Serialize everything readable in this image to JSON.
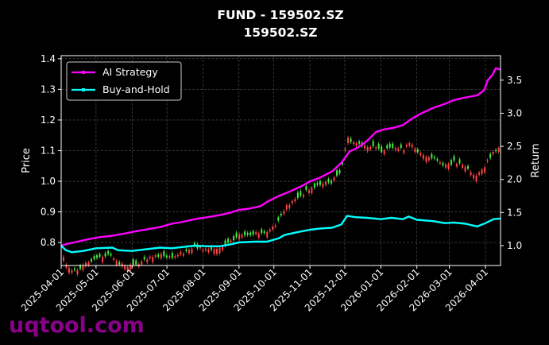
{
  "chart_data": {
    "type": "line",
    "title": "FUND - 159502.SZ",
    "subtitle": "159502.SZ",
    "ylabel_left": "Price",
    "ylabel_right": "Return",
    "watermark": "uqtool.com",
    "x_ticks": [
      "2025-04-01",
      "2025-05-01",
      "2025-06-01",
      "2025-07-01",
      "2025-08-01",
      "2025-09-01",
      "2025-10-01",
      "2025-11-01",
      "2025-12-01",
      "2026-01-01",
      "2026-02-01",
      "2026-03-01",
      "2026-04-01"
    ],
    "xlim": [
      "2025-04-01",
      "2026-04-14"
    ],
    "y_left_ticks": [
      "0.8",
      "0.9",
      "1.0",
      "1.1",
      "1.2",
      "1.3",
      "1.4"
    ],
    "y_left_range": [
      0.725,
      1.41
    ],
    "y_right_ticks": [
      "1.0",
      "1.5",
      "2.0",
      "2.5",
      "3.0",
      "3.5"
    ],
    "y_right_range": [
      0.7,
      3.87
    ],
    "grid": true,
    "legend_position": "top-left",
    "series": [
      {
        "name": "AI Strategy",
        "axis": "right",
        "color": "#ff00ff",
        "points": [
          [
            "2025-04-01",
            1.0
          ],
          [
            "2025-04-07",
            1.03
          ],
          [
            "2025-04-15",
            1.06
          ],
          [
            "2025-04-25",
            1.1
          ],
          [
            "2025-05-05",
            1.13
          ],
          [
            "2025-05-15",
            1.15
          ],
          [
            "2025-05-25",
            1.18
          ],
          [
            "2025-06-05",
            1.22
          ],
          [
            "2025-06-15",
            1.25
          ],
          [
            "2025-06-25",
            1.28
          ],
          [
            "2025-07-05",
            1.33
          ],
          [
            "2025-07-15",
            1.36
          ],
          [
            "2025-07-25",
            1.4
          ],
          [
            "2025-08-05",
            1.43
          ],
          [
            "2025-08-15",
            1.46
          ],
          [
            "2025-08-25",
            1.5
          ],
          [
            "2025-09-01",
            1.54
          ],
          [
            "2025-09-10",
            1.56
          ],
          [
            "2025-09-20",
            1.6
          ],
          [
            "2025-09-25",
            1.66
          ],
          [
            "2025-10-05",
            1.75
          ],
          [
            "2025-10-15",
            1.82
          ],
          [
            "2025-10-25",
            1.9
          ],
          [
            "2025-11-01",
            1.97
          ],
          [
            "2025-11-10",
            2.03
          ],
          [
            "2025-11-20",
            2.12
          ],
          [
            "2025-11-28",
            2.25
          ],
          [
            "2025-12-05",
            2.42
          ],
          [
            "2025-12-12",
            2.48
          ],
          [
            "2025-12-20",
            2.58
          ],
          [
            "2025-12-28",
            2.72
          ],
          [
            "2026-01-05",
            2.76
          ],
          [
            "2026-01-12",
            2.78
          ],
          [
            "2026-01-20",
            2.82
          ],
          [
            "2026-01-28",
            2.92
          ],
          [
            "2026-02-05",
            3.0
          ],
          [
            "2026-02-15",
            3.08
          ],
          [
            "2026-02-25",
            3.14
          ],
          [
            "2026-03-05",
            3.2
          ],
          [
            "2026-03-15",
            3.24
          ],
          [
            "2026-03-25",
            3.27
          ],
          [
            "2026-03-31",
            3.35
          ],
          [
            "2026-04-03",
            3.5
          ],
          [
            "2026-04-07",
            3.58
          ],
          [
            "2026-04-10",
            3.68
          ],
          [
            "2026-04-14",
            3.66
          ]
        ]
      },
      {
        "name": "Buy-and-Hold",
        "axis": "right",
        "color": "#00ffff",
        "points": [
          [
            "2025-04-01",
            1.0
          ],
          [
            "2025-04-05",
            0.93
          ],
          [
            "2025-04-10",
            0.9
          ],
          [
            "2025-04-20",
            0.92
          ],
          [
            "2025-05-01",
            0.96
          ],
          [
            "2025-05-15",
            0.97
          ],
          [
            "2025-05-20",
            0.93
          ],
          [
            "2025-06-01",
            0.92
          ],
          [
            "2025-06-15",
            0.95
          ],
          [
            "2025-06-25",
            0.97
          ],
          [
            "2025-07-05",
            0.96
          ],
          [
            "2025-07-15",
            0.98
          ],
          [
            "2025-07-25",
            1.0
          ],
          [
            "2025-08-05",
            0.99
          ],
          [
            "2025-08-15",
            0.99
          ],
          [
            "2025-08-25",
            1.02
          ],
          [
            "2025-09-01",
            1.05
          ],
          [
            "2025-09-15",
            1.06
          ],
          [
            "2025-09-25",
            1.06
          ],
          [
            "2025-10-05",
            1.11
          ],
          [
            "2025-10-10",
            1.16
          ],
          [
            "2025-10-20",
            1.2
          ],
          [
            "2025-11-01",
            1.24
          ],
          [
            "2025-11-10",
            1.26
          ],
          [
            "2025-11-20",
            1.27
          ],
          [
            "2025-11-28",
            1.32
          ],
          [
            "2025-12-03",
            1.45
          ],
          [
            "2025-12-10",
            1.43
          ],
          [
            "2025-12-20",
            1.42
          ],
          [
            "2026-01-01",
            1.4
          ],
          [
            "2026-01-10",
            1.42
          ],
          [
            "2026-01-20",
            1.4
          ],
          [
            "2026-01-25",
            1.44
          ],
          [
            "2026-02-01",
            1.39
          ],
          [
            "2026-02-15",
            1.37
          ],
          [
            "2026-02-25",
            1.34
          ],
          [
            "2026-03-05",
            1.35
          ],
          [
            "2026-03-15",
            1.33
          ],
          [
            "2026-03-25",
            1.29
          ],
          [
            "2026-04-01",
            1.34
          ],
          [
            "2026-04-08",
            1.4
          ],
          [
            "2026-04-14",
            1.41
          ]
        ]
      }
    ]
  }
}
